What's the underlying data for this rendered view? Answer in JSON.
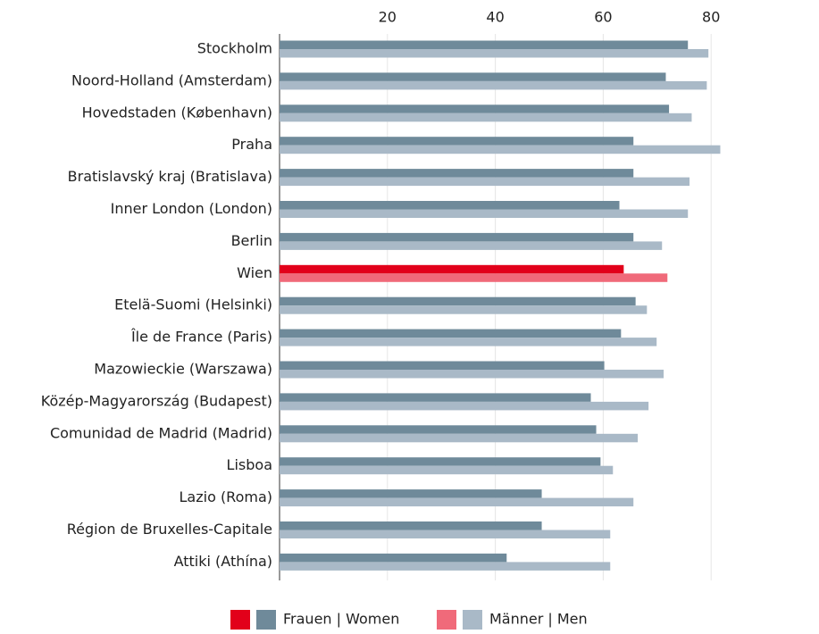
{
  "chart_data": {
    "type": "barh",
    "categories": [
      "Stockholm",
      "Noord-Holland (Amsterdam)",
      "Hovedstaden (København)",
      "Praha",
      "Bratislavský kraj (Bratislava)",
      "Inner London (London)",
      "Berlin",
      "Wien",
      "Etelä-Suomi (Helsinki)",
      "Île de France (Paris)",
      "Mazowieckie (Warszawa)",
      "Közép-Magyarország (Budapest)",
      "Comunidad de Madrid (Madrid)",
      "Lisboa",
      "Lazio (Roma)",
      "Région de Bruxelles-Capitale",
      "Attiki (Athína)"
    ],
    "series": [
      {
        "name": "Frauen | Women",
        "color": "#6f8a9a",
        "highlight_color": "#e2001a",
        "values": [
          75.7,
          71.6,
          72.2,
          65.6,
          65.6,
          63.0,
          65.6,
          63.8,
          66.0,
          63.3,
          60.2,
          57.7,
          58.7,
          59.5,
          48.6,
          48.6,
          42.1
        ]
      },
      {
        "name": "Männer | Men",
        "color": "#a9b9c7",
        "highlight_color": "#f06a7a",
        "values": [
          79.5,
          79.2,
          76.4,
          81.7,
          76.0,
          75.7,
          70.9,
          71.9,
          68.1,
          69.9,
          71.2,
          68.4,
          66.4,
          61.8,
          65.6,
          61.3,
          61.3
        ]
      }
    ],
    "highlight": "Wien",
    "xlim": [
      0,
      100
    ],
    "xticks": [
      20,
      40,
      60,
      80
    ],
    "grid": true
  }
}
